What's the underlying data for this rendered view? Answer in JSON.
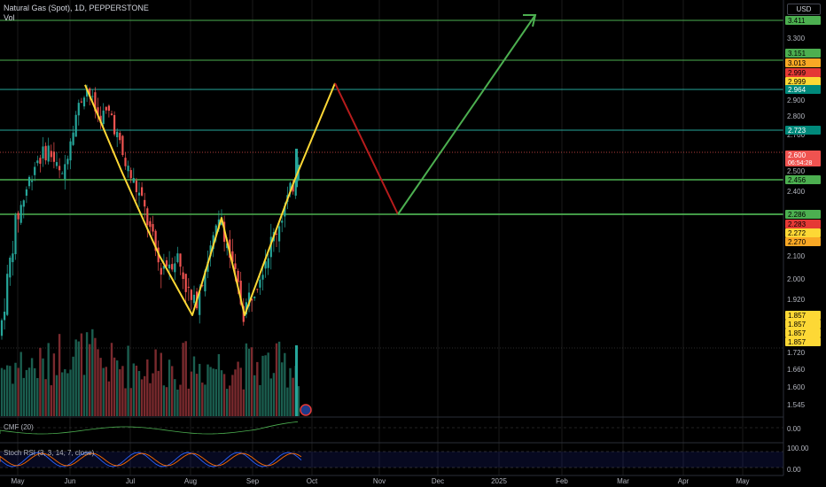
{
  "header": {
    "title": "Natural Gas (Spot), 1D, PEPPERSTONE",
    "volume_label": "Vol"
  },
  "currency_button": "USD",
  "indicators": {
    "cmf_label": "CMF (20)",
    "stoch_label": "Stoch RSI (3, 3, 14, 7, close)",
    "cmf_ticks": [
      "0.00"
    ],
    "stoch_ticks": [
      "100.00",
      "0.00"
    ]
  },
  "price_axis": {
    "ticks": [
      "3.300",
      "3.200",
      "2.900",
      "2.800",
      "2.700",
      "2.500",
      "2.400",
      "2.100",
      "2.000",
      "1.920",
      "1.720",
      "1.660",
      "1.600",
      "1.545"
    ],
    "tags": [
      {
        "label": "3.411",
        "color": "#4caf50",
        "text": "#000000"
      },
      {
        "label": "3.151",
        "color": "#4caf50",
        "text": "#000000"
      },
      {
        "label": "3.013",
        "color": "#f9a825",
        "text": "#000000"
      },
      {
        "label": "2.999",
        "color": "#e53935",
        "text": "#000000"
      },
      {
        "label": "2.999",
        "color": "#fdd835",
        "text": "#000000"
      },
      {
        "label": "2.964",
        "color": "#00897b",
        "text": "#ffffff"
      },
      {
        "label": "2.723",
        "color": "#00897b",
        "text": "#ffffff"
      },
      {
        "label": "2.600",
        "color": "#ef5350",
        "text": "#ffffff",
        "sub": "06:54:28"
      },
      {
        "label": "2.456",
        "color": "#4caf50",
        "text": "#000000"
      },
      {
        "label": "2.286",
        "color": "#4caf50",
        "text": "#000000"
      },
      {
        "label": "2.283",
        "color": "#e53935",
        "text": "#000000"
      },
      {
        "label": "2.272",
        "color": "#fdd835",
        "text": "#000000"
      },
      {
        "label": "2.270",
        "color": "#f9a825",
        "text": "#000000"
      },
      {
        "label": "1.857",
        "color": "#fdd835",
        "text": "#000000"
      },
      {
        "label": "1.857",
        "color": "#fdd835",
        "text": "#000000"
      },
      {
        "label": "1.857",
        "color": "#fdd835",
        "text": "#000000"
      },
      {
        "label": "1.857",
        "color": "#fdd835",
        "text": "#000000"
      }
    ]
  },
  "time_axis": [
    "May",
    "Jun",
    "Jul",
    "Aug",
    "Sep",
    "Oct",
    "Nov",
    "Dec",
    "2025",
    "Feb",
    "Mar",
    "Apr",
    "May"
  ],
  "chart_data": {
    "type": "candlestick",
    "horizontal_levels": [
      {
        "price": 3.411,
        "color": "#4caf50"
      },
      {
        "price": 3.151,
        "color": "#4caf50"
      },
      {
        "price": 2.964,
        "color": "#26a69a"
      },
      {
        "price": 2.723,
        "color": "#26a69a"
      },
      {
        "price": 2.456,
        "color": "#4caf50"
      },
      {
        "price": 2.286,
        "color": "#4caf50"
      }
    ],
    "current_price": 2.6,
    "pattern_lines": [
      {
        "name": "double-bottom",
        "color": "#fdd835",
        "points": [
          [
            "Jun",
            2.99
          ],
          [
            "Aug",
            1.857
          ],
          [
            "Aug-late",
            2.27
          ],
          [
            "Sep",
            1.857
          ],
          [
            "Oct",
            2.999
          ]
        ]
      },
      {
        "name": "projected-drop",
        "color": "#b71c1c",
        "points": [
          [
            "Oct",
            2.999
          ],
          [
            "Nov",
            2.286
          ]
        ]
      },
      {
        "name": "projected-rise",
        "color": "#4caf50",
        "points": [
          [
            "Nov",
            2.286
          ],
          [
            "Feb",
            3.411
          ]
        ]
      }
    ],
    "candles_summary": {
      "start": "May",
      "end": "Sep",
      "high": 2.99,
      "low": 1.857,
      "last": 2.6
    }
  }
}
